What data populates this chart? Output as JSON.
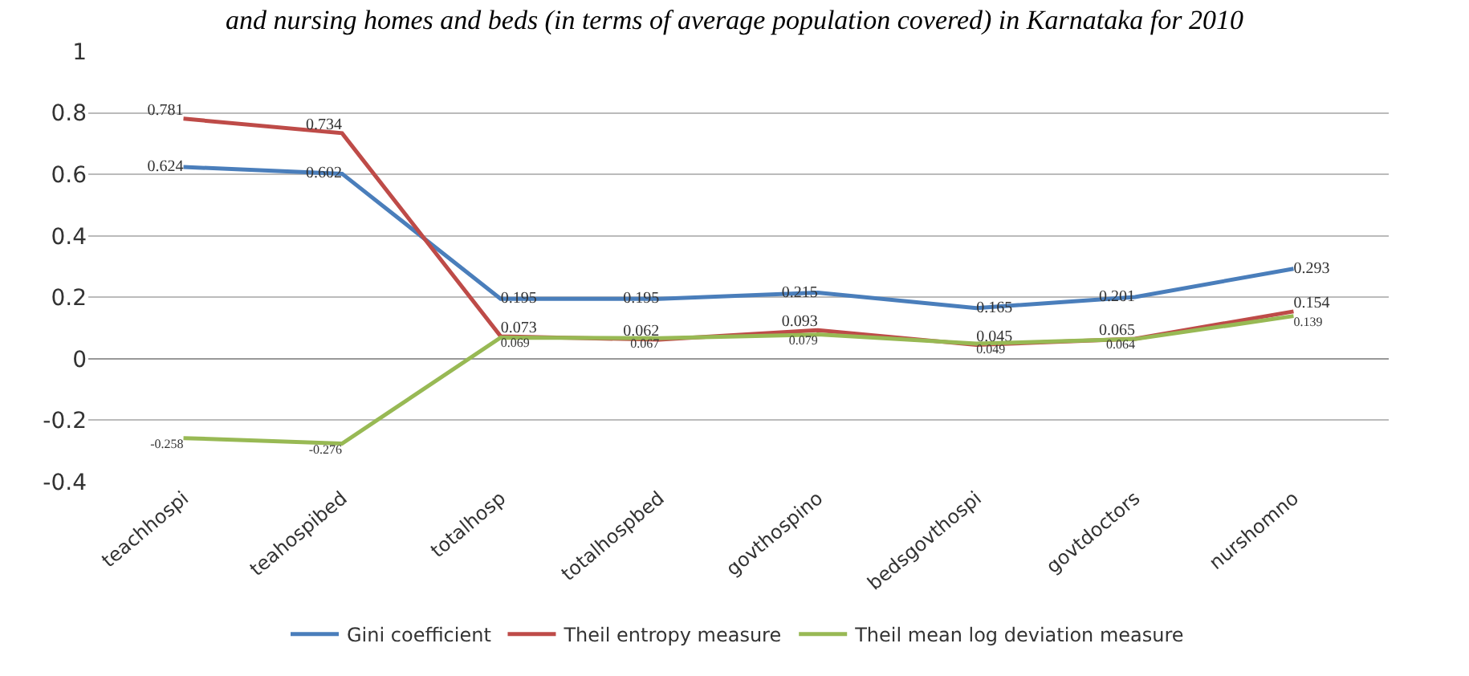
{
  "chart_data": {
    "type": "line",
    "title": "and nursing homes and beds (in terms of average population covered) in Karnataka for 2010",
    "categories": [
      "teachhospi",
      "teahospibed",
      "totalhosp",
      "totalhospbed",
      "govthospino",
      "bedsgovthospi",
      "govtdoctors",
      "nurshomno"
    ],
    "series": [
      {
        "name": "Gini coefficient",
        "color": "#4a7ebb",
        "values": [
          0.624,
          0.602,
          0.195,
          0.195,
          0.215,
          0.165,
          0.201,
          0.293
        ]
      },
      {
        "name": "Theil entropy measure",
        "color": "#be4b48",
        "values": [
          0.781,
          0.734,
          0.073,
          0.062,
          0.093,
          0.045,
          0.065,
          0.154
        ]
      },
      {
        "name": "Theil mean log deviation measure",
        "color": "#98b954",
        "values": [
          -0.258,
          -0.276,
          0.069,
          0.067,
          0.079,
          0.049,
          0.064,
          0.139
        ]
      }
    ],
    "ylim": [
      -0.4,
      1
    ],
    "yticks": [
      -0.4,
      -0.2,
      0,
      0.2,
      0.4,
      0.6,
      0.8,
      1
    ],
    "grid": "y",
    "legend": "bottom",
    "marker": "none",
    "line_style": "solid",
    "data_labels": true
  }
}
